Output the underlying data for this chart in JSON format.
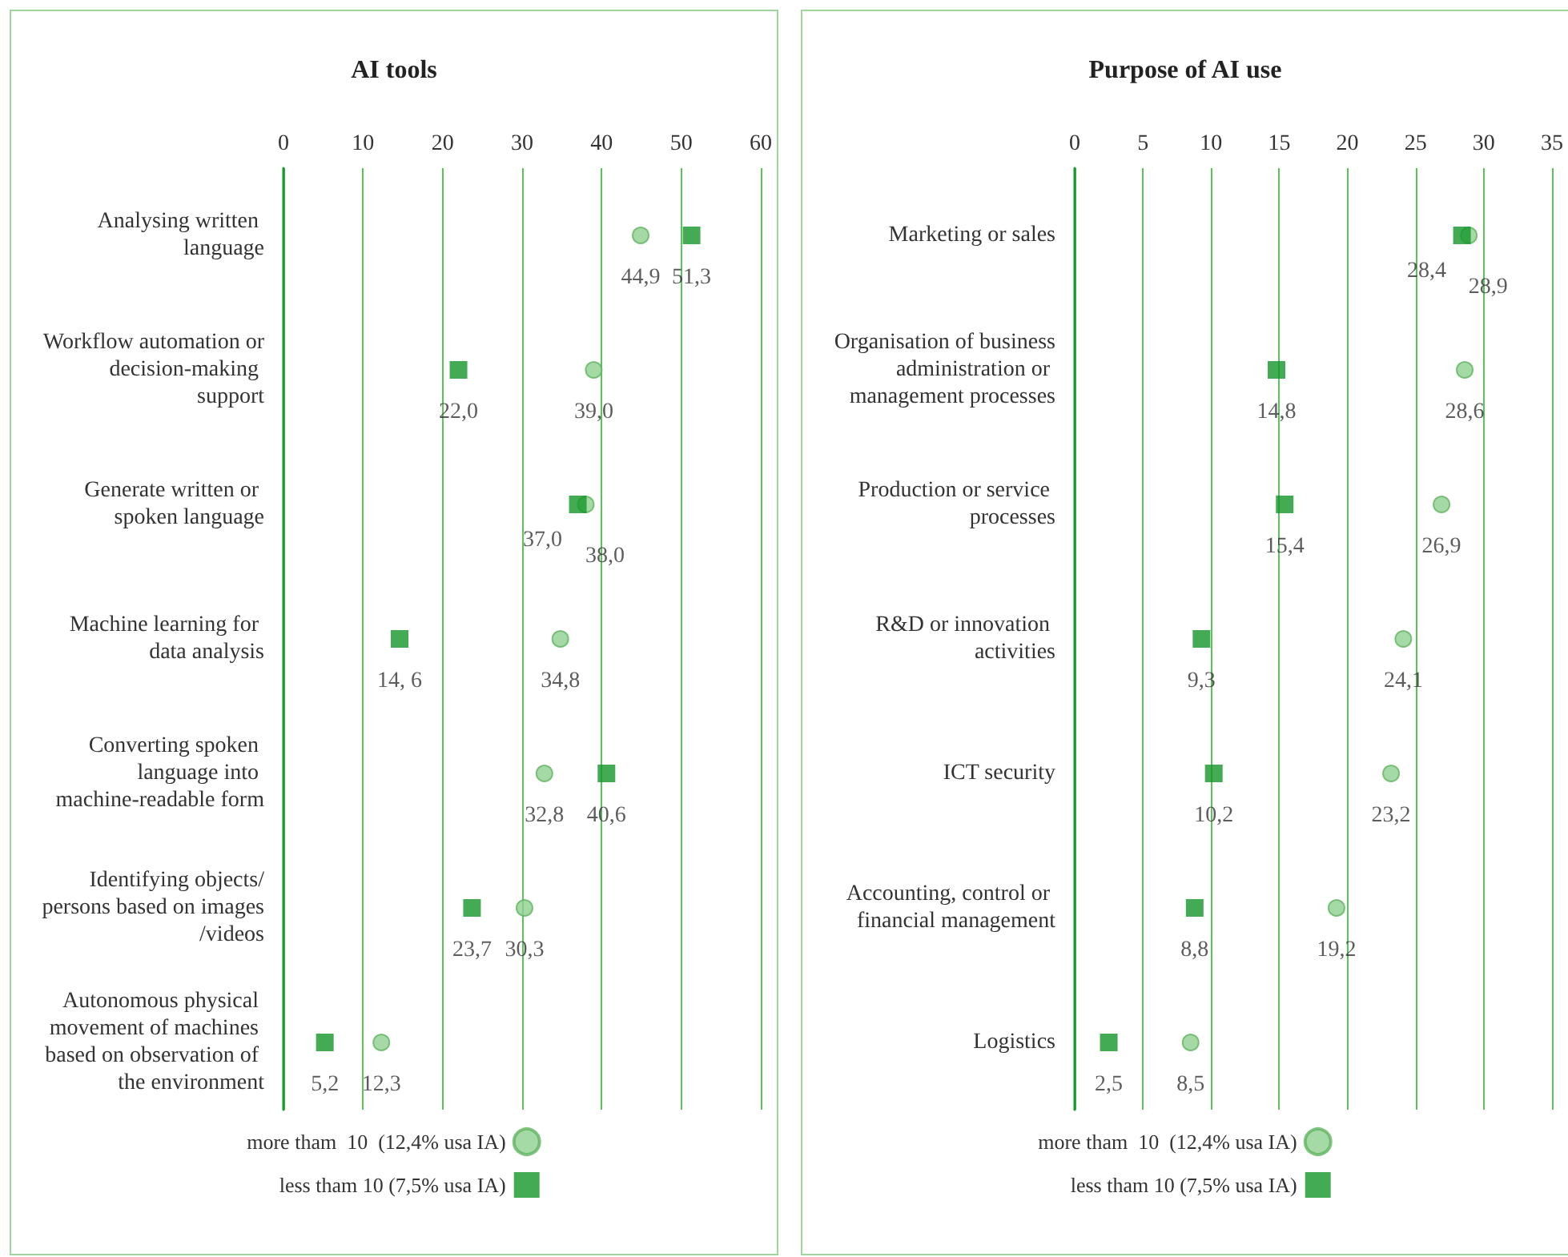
{
  "chart_data": [
    {
      "type": "scatter",
      "title": "AI tools",
      "orientation": "horizontal",
      "categories": [
        "Analysing written language",
        "Workflow automation or decision-making support",
        "Generate written or spoken language",
        "Machine learning for data analysis",
        "Converting spoken language into machine-readable form",
        "Identifying objects/persons based on images/videos",
        "Autonomous physical movement of machines based on observation of the environment"
      ],
      "xlim": [
        0,
        60
      ],
      "xticks": [
        0,
        10,
        20,
        30,
        40,
        50,
        60
      ],
      "grid": "x",
      "legend": "bottom",
      "series": [
        {
          "name": "more tham  10  (12,4% usa IA)",
          "color": "#8fcf8f",
          "marker": "circle",
          "values": [
            44.9,
            39.0,
            38.0,
            34.8,
            32.8,
            30.3,
            12.3
          ],
          "value_labels": [
            "44,9",
            "39,0",
            "38,0",
            "34,8",
            "32,8",
            "30,3",
            "12,3"
          ]
        },
        {
          "name": "less tham 10 (7,5% usa IA)",
          "color": "#149629",
          "marker": "square",
          "values": [
            51.3,
            22.0,
            37.0,
            14.6,
            40.6,
            23.7,
            5.2
          ],
          "value_labels": [
            "51,3",
            "22,0",
            "37,0",
            "14, 6",
            "40,6",
            "23,7",
            "5,2"
          ]
        }
      ]
    },
    {
      "type": "scatter",
      "title": "Purpose of AI use",
      "orientation": "horizontal",
      "categories": [
        "Marketing or sales",
        "Organisation of business administration or management processes",
        "Production or service processes",
        "R&D or innovation activities",
        "ICT security",
        "Accounting, control or financial management",
        "Logistics"
      ],
      "xlim": [
        0,
        35
      ],
      "xticks": [
        0,
        5,
        10,
        15,
        20,
        25,
        30,
        35
      ],
      "grid": "x",
      "legend": "bottom",
      "series": [
        {
          "name": "more tham  10  (12,4% usa IA)",
          "color": "#8fcf8f",
          "marker": "circle",
          "values": [
            28.9,
            28.6,
            26.9,
            24.1,
            23.2,
            19.2,
            8.5
          ],
          "value_labels": [
            "28,9",
            "28,6",
            "26,9",
            "24,1",
            "23,2",
            "19,2",
            "8,5"
          ]
        },
        {
          "name": "less tham 10 (7,5% usa IA)",
          "color": "#149629",
          "marker": "square",
          "values": [
            28.4,
            14.8,
            15.4,
            9.3,
            10.2,
            8.8,
            2.5
          ],
          "value_labels": [
            "28,4",
            "14,8",
            "15,4",
            "9,3",
            "10,2",
            "8,8",
            "2,5"
          ]
        }
      ]
    }
  ]
}
